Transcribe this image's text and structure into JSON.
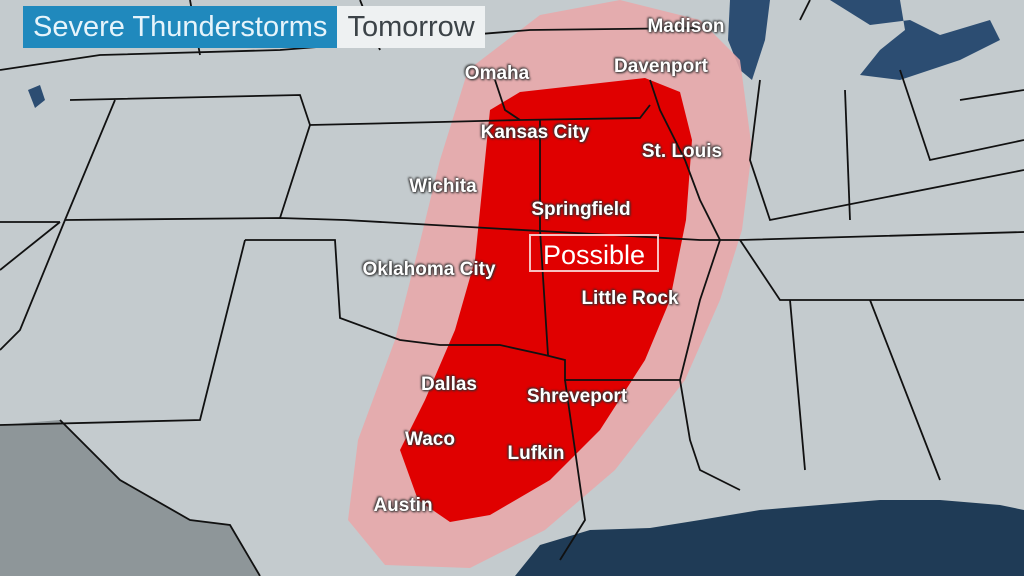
{
  "title": {
    "hazard": "Severe Thunderstorms",
    "day": "Tomorrow"
  },
  "risk_label": "Possible",
  "colors": {
    "land": "#c4cbce",
    "risk_possible": "#e00000",
    "risk_outer": "#e8a8ab",
    "water": "#2c4d72",
    "title_bg": "#2089bd"
  },
  "cities": [
    {
      "name": "Madison"
    },
    {
      "name": "Omaha"
    },
    {
      "name": "Davenport"
    },
    {
      "name": "Kansas City"
    },
    {
      "name": "St. Louis"
    },
    {
      "name": "Wichita"
    },
    {
      "name": "Springfield"
    },
    {
      "name": "Oklahoma City"
    },
    {
      "name": "Little Rock"
    },
    {
      "name": "Dallas"
    },
    {
      "name": "Shreveport"
    },
    {
      "name": "Waco"
    },
    {
      "name": "Lufkin"
    },
    {
      "name": "Austin"
    }
  ]
}
